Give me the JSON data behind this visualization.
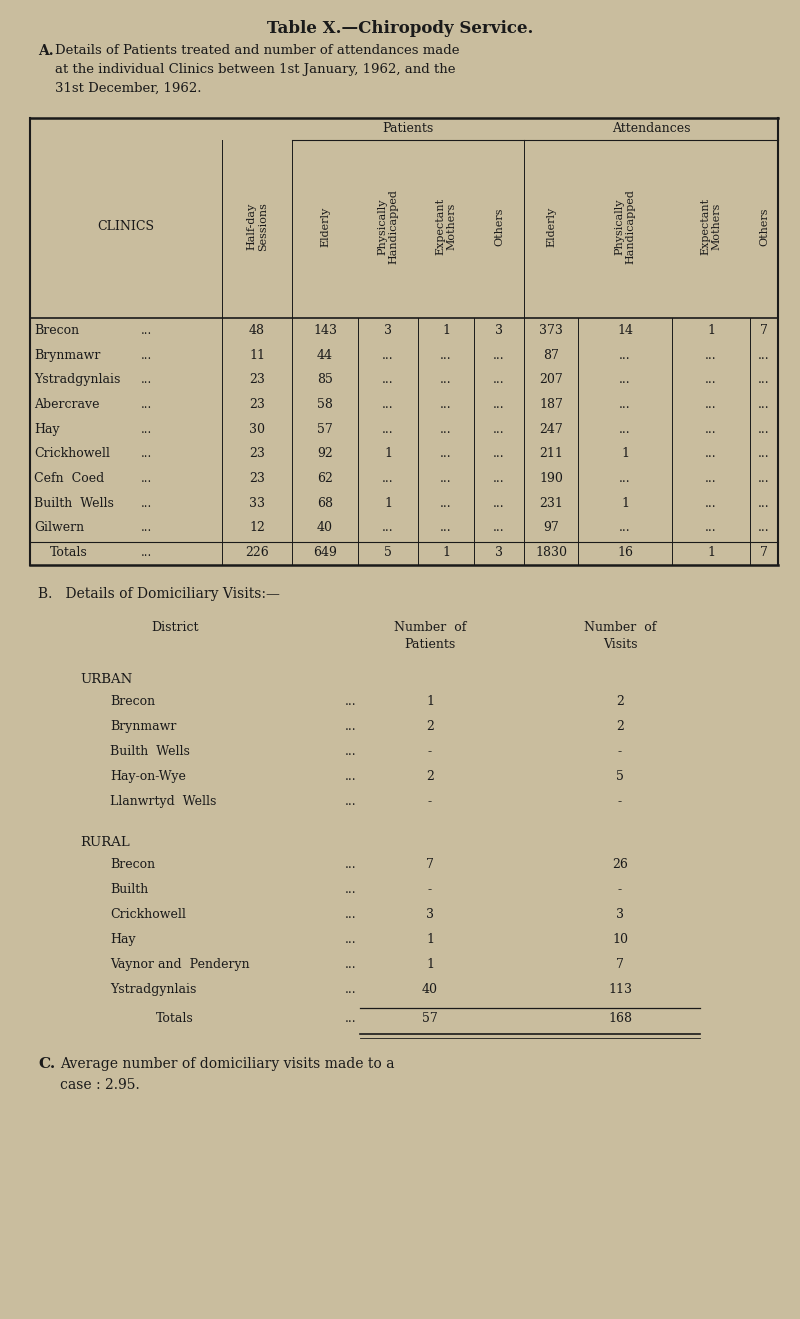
{
  "bg_color": "#c9bd9e",
  "text_color": "#1a1a1a",
  "title": "Table X.—Chiropody Service.",
  "patients_label": "Patients",
  "attendances_label": "Attendances",
  "clinics": [
    "Brecon",
    "Brynmawr",
    "Ystradgynlais",
    "Abercrave",
    "Hay",
    "Crickhowell",
    "Cefn  Coed",
    "Builth  Wells",
    "Gilwern"
  ],
  "half_day_sessions": [
    48,
    11,
    23,
    23,
    30,
    23,
    23,
    33,
    12
  ],
  "p_elderly": [
    143,
    44,
    85,
    58,
    57,
    92,
    62,
    68,
    40
  ],
  "p_phys_hand": [
    "3",
    "...",
    "...",
    "...",
    "...",
    "1",
    "...",
    "1",
    "..."
  ],
  "p_exp_moth": [
    "1",
    "...",
    "...",
    "...",
    "...",
    "...",
    "...",
    "...",
    "..."
  ],
  "p_others": [
    "3",
    "...",
    "...",
    "...",
    "...",
    "...",
    "...",
    "...",
    "..."
  ],
  "a_elderly": [
    373,
    87,
    207,
    187,
    247,
    211,
    190,
    231,
    97
  ],
  "a_phys_hand": [
    "14",
    "...",
    "...",
    "...",
    "...",
    "1",
    "...",
    "1",
    "..."
  ],
  "a_exp_moth": [
    "1",
    "...",
    "...",
    "...",
    "...",
    "...",
    "...",
    "...",
    "..."
  ],
  "a_others": [
    "7",
    "...",
    "...",
    "...",
    "...",
    "...",
    "...",
    "...",
    "..."
  ],
  "totals_label": "Totals",
  "totals_hds": "226",
  "totals_p_eld": "649",
  "totals_p_ph": "5",
  "totals_p_em": "1",
  "totals_p_ot": "3",
  "totals_a_eld": "1830",
  "totals_a_ph": "16",
  "totals_a_em": "1",
  "totals_a_ot": "7",
  "section_b_title": "B.   Details of Domiciliary Visits:—",
  "b_district_header": "District",
  "b_patients_header": "Number  of\nPatients",
  "b_visits_header": "Number  of\nVisits",
  "urban_label": "URBAN",
  "urban_districts": [
    "Brecon",
    "Brynmawr",
    "Builth  Wells",
    "Hay-on-Wye",
    "Llanwrtyd  Wells"
  ],
  "urban_patients": [
    "1",
    "2",
    "-",
    "2",
    "-"
  ],
  "urban_visits": [
    "2",
    "2",
    "-",
    "5",
    "-"
  ],
  "rural_label": "RURAL",
  "rural_districts": [
    "Brecon",
    "Builth",
    "Crickhowell",
    "Hay",
    "Vaynor and  Penderyn",
    "Ystradgynlais"
  ],
  "rural_patients": [
    "7",
    "-",
    "3",
    "1",
    "1",
    "40"
  ],
  "rural_visits": [
    "26",
    "-",
    "3",
    "10",
    "7",
    "113"
  ],
  "b_totals_label": "Totals",
  "b_totals_patients": "57",
  "b_totals_visits": "168",
  "section_c_bold": "C.",
  "section_c_text": "Average number of domiciliary visits made to a\n    case : 2.95."
}
